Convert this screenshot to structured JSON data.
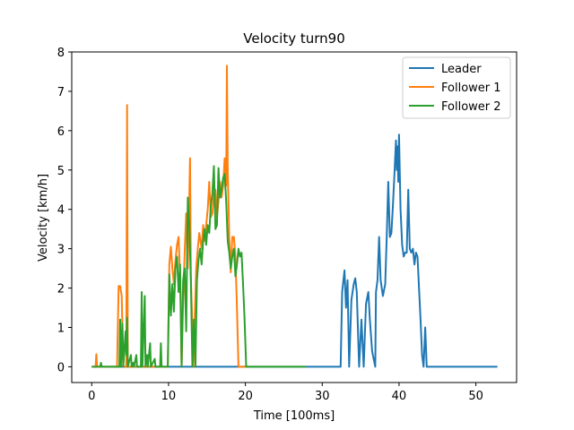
{
  "chart_data": {
    "type": "line",
    "title": "Velocity turn90",
    "xlabel": "Time [100ms]",
    "ylabel": "Velocity [km/h]",
    "xlim": [
      -2.6,
      55.3
    ],
    "ylim": [
      -0.4,
      8.0
    ],
    "xticks": [
      0,
      10,
      20,
      30,
      40,
      50
    ],
    "yticks": [
      0,
      1,
      2,
      3,
      4,
      5,
      6,
      7,
      8
    ],
    "grid": false,
    "legend_position": "top-right",
    "series": [
      {
        "name": "Leader",
        "color": "#1f77b4",
        "points": [
          [
            0,
            0
          ],
          [
            32.4,
            0
          ],
          [
            32.6,
            1.9
          ],
          [
            32.9,
            2.45
          ],
          [
            33.1,
            1.5
          ],
          [
            33.3,
            2.2
          ],
          [
            33.5,
            0
          ],
          [
            33.8,
            1.7
          ],
          [
            34.1,
            2.1
          ],
          [
            34.3,
            2.25
          ],
          [
            34.5,
            1.9
          ],
          [
            34.8,
            0
          ],
          [
            35.1,
            1.2
          ],
          [
            35.4,
            0
          ],
          [
            35.7,
            1.6
          ],
          [
            36.0,
            1.9
          ],
          [
            36.2,
            1.2
          ],
          [
            36.5,
            0.4
          ],
          [
            36.9,
            0
          ],
          [
            37.0,
            1.9
          ],
          [
            37.2,
            2.2
          ],
          [
            37.4,
            3.3
          ],
          [
            37.6,
            2.2
          ],
          [
            37.9,
            1.8
          ],
          [
            38.2,
            2.1
          ],
          [
            38.4,
            3.3
          ],
          [
            38.6,
            4.7
          ],
          [
            38.8,
            3.3
          ],
          [
            39.0,
            3.4
          ],
          [
            39.2,
            4.1
          ],
          [
            39.4,
            4.9
          ],
          [
            39.6,
            5.75
          ],
          [
            39.7,
            5.0
          ],
          [
            39.8,
            5.6
          ],
          [
            39.9,
            4.7
          ],
          [
            40.0,
            5.9
          ],
          [
            40.2,
            4.0
          ],
          [
            40.4,
            3.1
          ],
          [
            40.6,
            2.8
          ],
          [
            40.8,
            2.9
          ],
          [
            41.0,
            2.9
          ],
          [
            41.2,
            4.5
          ],
          [
            41.4,
            3.0
          ],
          [
            41.6,
            2.9
          ],
          [
            41.8,
            3.0
          ],
          [
            42.0,
            2.6
          ],
          [
            42.2,
            2.9
          ],
          [
            42.4,
            2.8
          ],
          [
            42.6,
            2.0
          ],
          [
            42.8,
            1.2
          ],
          [
            43.0,
            0.3
          ],
          [
            43.2,
            0
          ],
          [
            43.4,
            1.0
          ],
          [
            43.6,
            0
          ],
          [
            52.8,
            0
          ]
        ]
      },
      {
        "name": "Follower 1",
        "color": "#ff7f0e",
        "points": [
          [
            0,
            0
          ],
          [
            0.5,
            0
          ],
          [
            0.6,
            0.32
          ],
          [
            0.7,
            0
          ],
          [
            3.3,
            0
          ],
          [
            3.5,
            2.05
          ],
          [
            3.7,
            2.05
          ],
          [
            3.9,
            1.8
          ],
          [
            4.1,
            0
          ],
          [
            4.5,
            0
          ],
          [
            4.6,
            6.65
          ],
          [
            4.7,
            0
          ],
          [
            9.9,
            0
          ],
          [
            10.1,
            2.6
          ],
          [
            10.3,
            3.05
          ],
          [
            10.5,
            2.5
          ],
          [
            10.7,
            2.1
          ],
          [
            10.9,
            2.7
          ],
          [
            11.1,
            3.1
          ],
          [
            11.3,
            3.3
          ],
          [
            11.5,
            2.3
          ],
          [
            11.7,
            0
          ],
          [
            11.9,
            1.7
          ],
          [
            12.1,
            2.9
          ],
          [
            12.3,
            3.9
          ],
          [
            12.5,
            2.5
          ],
          [
            12.7,
            4.3
          ],
          [
            12.8,
            5.3
          ],
          [
            12.9,
            2.3
          ],
          [
            13.1,
            1.0
          ],
          [
            13.2,
            0
          ],
          [
            13.6,
            2.5
          ],
          [
            13.8,
            3.0
          ],
          [
            14.0,
            3.4
          ],
          [
            14.3,
            3.0
          ],
          [
            14.5,
            3.6
          ],
          [
            14.7,
            3.2
          ],
          [
            14.9,
            3.6
          ],
          [
            15.1,
            4.0
          ],
          [
            15.3,
            4.7
          ],
          [
            15.5,
            3.8
          ],
          [
            15.7,
            3.9
          ],
          [
            15.9,
            4.4
          ],
          [
            16.1,
            4.5
          ],
          [
            16.3,
            3.8
          ],
          [
            16.5,
            4.2
          ],
          [
            16.7,
            4.7
          ],
          [
            16.9,
            4.3
          ],
          [
            17.1,
            4.6
          ],
          [
            17.3,
            5.3
          ],
          [
            17.5,
            4.6
          ],
          [
            17.6,
            7.65
          ],
          [
            17.7,
            5.0
          ],
          [
            17.9,
            3.3
          ],
          [
            18.1,
            2.4
          ],
          [
            18.3,
            3.3
          ],
          [
            18.5,
            3.3
          ],
          [
            18.7,
            2.8
          ],
          [
            18.9,
            1.5
          ],
          [
            19.1,
            0
          ],
          [
            20.5,
            0
          ]
        ]
      },
      {
        "name": "Follower 2",
        "color": "#2ca02c",
        "points": [
          [
            0,
            0
          ],
          [
            1.1,
            0
          ],
          [
            1.2,
            0.1
          ],
          [
            1.3,
            0
          ],
          [
            3.6,
            0
          ],
          [
            3.7,
            1.2
          ],
          [
            3.8,
            0
          ],
          [
            4.0,
            1.1
          ],
          [
            4.1,
            0
          ],
          [
            4.4,
            0.9
          ],
          [
            4.5,
            0.3
          ],
          [
            4.6,
            1.25
          ],
          [
            4.7,
            0
          ],
          [
            5.1,
            0.3
          ],
          [
            5.2,
            0
          ],
          [
            5.4,
            0.1
          ],
          [
            5.5,
            0
          ],
          [
            5.8,
            0.3
          ],
          [
            5.9,
            0
          ],
          [
            6.4,
            0
          ],
          [
            6.5,
            1.9
          ],
          [
            6.6,
            0
          ],
          [
            6.9,
            1.8
          ],
          [
            7.0,
            0
          ],
          [
            7.2,
            0.3
          ],
          [
            7.3,
            0
          ],
          [
            7.6,
            0.6
          ],
          [
            7.7,
            0
          ],
          [
            8.2,
            0.2
          ],
          [
            8.3,
            0
          ],
          [
            8.9,
            0
          ],
          [
            9.0,
            0.6
          ],
          [
            9.1,
            0
          ],
          [
            9.9,
            0
          ],
          [
            10.1,
            2.35
          ],
          [
            10.3,
            1.3
          ],
          [
            10.5,
            2.1
          ],
          [
            10.7,
            1.4
          ],
          [
            10.9,
            2.5
          ],
          [
            11.1,
            2.8
          ],
          [
            11.3,
            1.9
          ],
          [
            11.5,
            2.6
          ],
          [
            11.7,
            0
          ],
          [
            11.9,
            2.2
          ],
          [
            12.1,
            2.5
          ],
          [
            12.3,
            0.9
          ],
          [
            12.5,
            4.3
          ],
          [
            12.7,
            3.6
          ],
          [
            12.9,
            2.2
          ],
          [
            13.1,
            0
          ],
          [
            13.3,
            1.2
          ],
          [
            13.5,
            0
          ],
          [
            13.7,
            2.2
          ],
          [
            13.9,
            2.7
          ],
          [
            14.1,
            3.0
          ],
          [
            14.3,
            2.6
          ],
          [
            14.5,
            3.2
          ],
          [
            14.7,
            3.5
          ],
          [
            14.9,
            3.1
          ],
          [
            15.1,
            3.6
          ],
          [
            15.3,
            3.4
          ],
          [
            15.5,
            4.1
          ],
          [
            15.7,
            4.4
          ],
          [
            15.9,
            5.1
          ],
          [
            16.1,
            3.5
          ],
          [
            16.3,
            3.6
          ],
          [
            16.5,
            5.05
          ],
          [
            16.7,
            4.3
          ],
          [
            16.9,
            4.5
          ],
          [
            17.1,
            4.8
          ],
          [
            17.3,
            4.9
          ],
          [
            17.5,
            4.2
          ],
          [
            17.7,
            3.2
          ],
          [
            17.9,
            2.9
          ],
          [
            18.1,
            2.5
          ],
          [
            18.3,
            2.8
          ],
          [
            18.5,
            3.0
          ],
          [
            18.7,
            2.3
          ],
          [
            18.9,
            2.6
          ],
          [
            19.1,
            3.0
          ],
          [
            19.3,
            2.8
          ],
          [
            19.5,
            2.9
          ],
          [
            19.7,
            2.1
          ],
          [
            19.9,
            1.2
          ],
          [
            20.1,
            0
          ],
          [
            27.9,
            0
          ]
        ]
      }
    ]
  }
}
